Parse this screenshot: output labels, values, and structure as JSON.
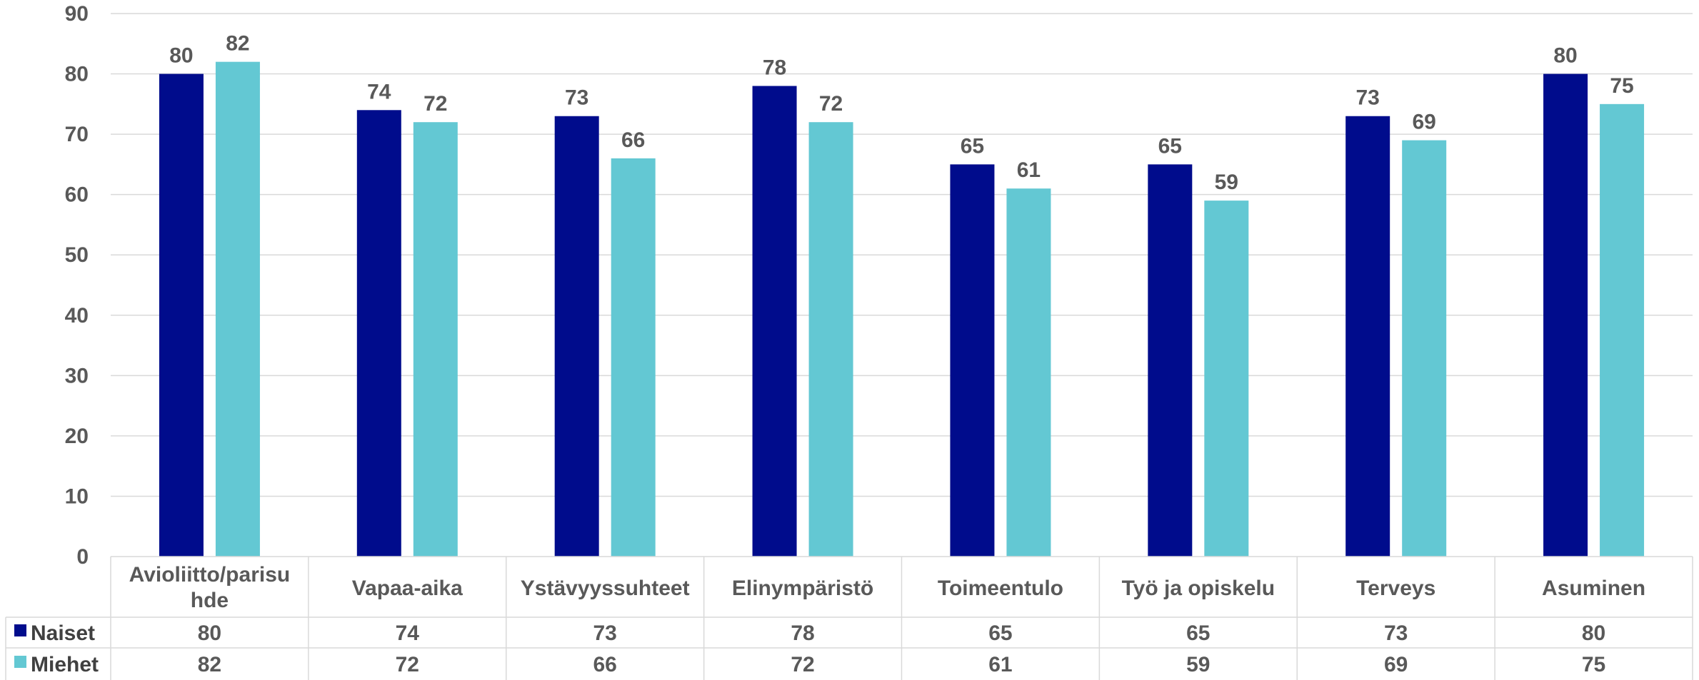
{
  "chart_data": {
    "type": "bar",
    "categories": [
      "Avioliitto/parisu hde",
      "Vapaa-aika",
      "Ystävyyssuhteet",
      "Elinympäristö",
      "Toimeentulo",
      "Työ ja opiskelu",
      "Terveys",
      "Asuminen"
    ],
    "category_lines": [
      [
        "Avioliitto/parisu",
        "hde"
      ],
      [
        "Vapaa-aika"
      ],
      [
        "Ystävyyssuhteet"
      ],
      [
        "Elinympäristö"
      ],
      [
        "Toimeentulo"
      ],
      [
        "Työ ja opiskelu"
      ],
      [
        "Terveys"
      ],
      [
        "Asuminen"
      ]
    ],
    "series": [
      {
        "name": "Naiset",
        "color": "#000C8C",
        "values": [
          80,
          74,
          73,
          78,
          65,
          65,
          73,
          80
        ]
      },
      {
        "name": "Miehet",
        "color": "#63C8D3",
        "values": [
          82,
          72,
          66,
          72,
          61,
          59,
          69,
          75
        ]
      }
    ],
    "data_labels": [
      [
        "80",
        "74",
        "73",
        "78",
        "65",
        "65",
        "73",
        "80"
      ],
      [
        "82",
        "72",
        "66",
        "72",
        "61",
        "59",
        "69",
        "75"
      ]
    ],
    "ylim": [
      0,
      90
    ],
    "yticks": [
      "0",
      "10",
      "20",
      "30",
      "40",
      "50",
      "60",
      "70",
      "80",
      "90"
    ],
    "ytick_values": [
      0,
      10,
      20,
      30,
      40,
      50,
      60,
      70,
      80,
      90
    ],
    "grid": true,
    "legend": "data-table",
    "title": "",
    "xlabel": "",
    "ylabel": ""
  }
}
